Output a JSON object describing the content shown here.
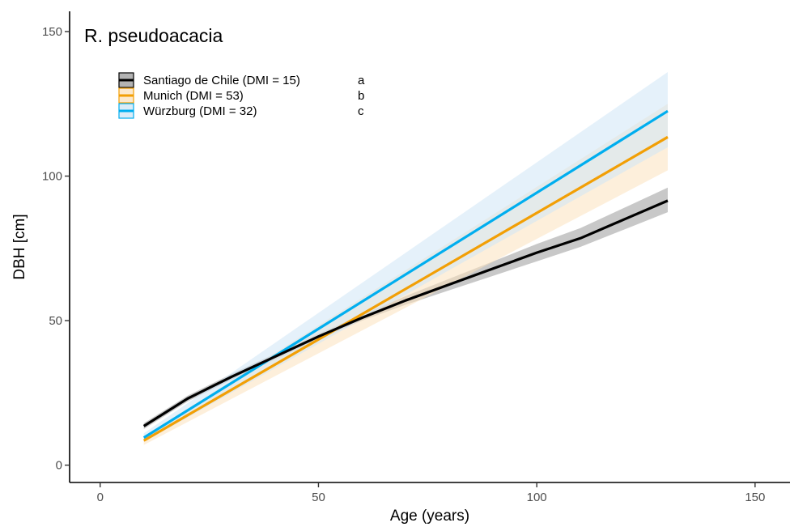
{
  "chart_data": {
    "type": "line",
    "title": "R. pseudoacacia",
    "xlabel": "Age (years)",
    "ylabel": "DBH [cm]",
    "xlim": [
      -7,
      158
    ],
    "ylim": [
      -6,
      157
    ],
    "x_ticks": [
      "0",
      "50",
      "100",
      "150"
    ],
    "y_ticks": [
      "0",
      "50",
      "100",
      "150"
    ],
    "grid": false,
    "legend_position": "top-left",
    "series": [
      {
        "name": "Santiago de Chile (DMI = 15)",
        "group": "a",
        "color": "#000000",
        "band_color": "#9a9a9a",
        "x": [
          10,
          20,
          30,
          40,
          50,
          60,
          70,
          80,
          90,
          100,
          110,
          120,
          130
        ],
        "y": [
          13.5,
          23,
          30.5,
          37.5,
          44.5,
          51,
          57,
          62.5,
          68,
          73.5,
          78.5,
          85,
          91.5
        ],
        "lower": [
          12.5,
          22,
          29.5,
          36.5,
          43.5,
          50,
          55.5,
          60.5,
          65.5,
          70.5,
          75.5,
          81.5,
          87.5
        ],
        "upper": [
          14.5,
          24,
          31.5,
          38.5,
          45.5,
          52,
          58.5,
          64.5,
          70.5,
          76.5,
          82,
          89,
          96
        ]
      },
      {
        "name": "Munich (DMI = 53)",
        "group": "b",
        "color": "#f29f05",
        "band_color": "#fbe2bd",
        "x": [
          10,
          130
        ],
        "y": [
          8.5,
          113.5
        ],
        "lower": [
          7,
          102
        ],
        "upper": [
          10,
          125
        ]
      },
      {
        "name": "Würzburg (DMI = 32)",
        "group": "c",
        "color": "#00aeef",
        "band_color": "#cfe6f6",
        "x": [
          10,
          130
        ],
        "y": [
          9.5,
          122.5
        ],
        "lower": [
          8,
          110
        ],
        "upper": [
          11,
          136
        ]
      }
    ]
  }
}
